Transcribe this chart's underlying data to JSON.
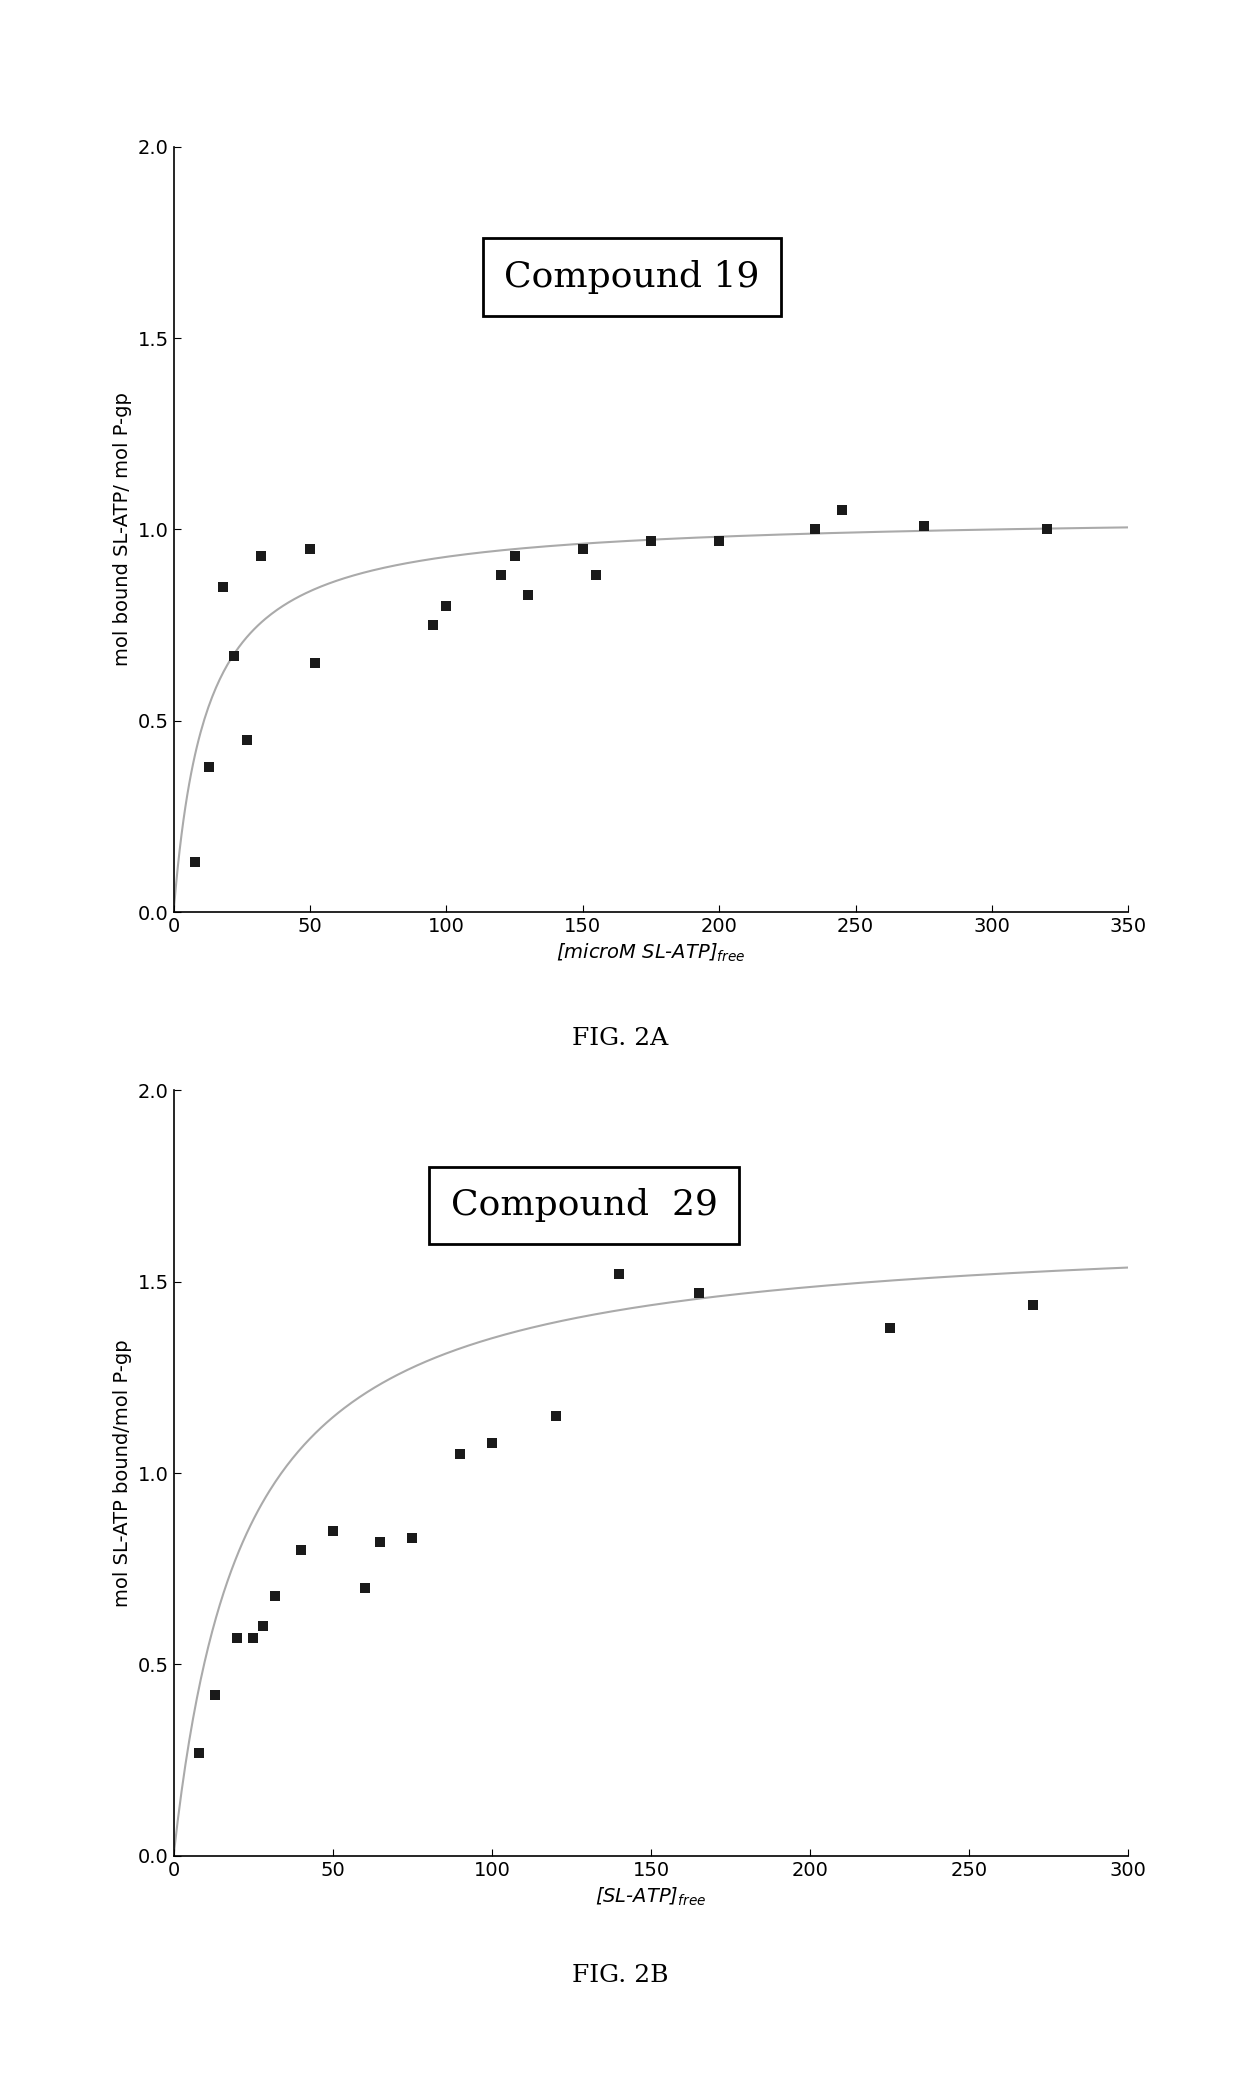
{
  "fig2a": {
    "title": "Compound 19",
    "scatter_x": [
      8,
      13,
      18,
      22,
      27,
      32,
      50,
      52,
      95,
      100,
      120,
      125,
      130,
      150,
      155,
      175,
      200,
      235,
      245,
      275,
      320
    ],
    "scatter_y": [
      0.13,
      0.38,
      0.85,
      0.67,
      0.45,
      0.93,
      0.95,
      0.65,
      0.75,
      0.8,
      0.88,
      0.93,
      0.83,
      0.95,
      0.88,
      0.97,
      0.97,
      1.0,
      1.05,
      1.01,
      1.0
    ],
    "xlabel": "[microM SL-ATP]",
    "xlabel_sub": "free",
    "ylabel": "mol bound SL-ATP/ mol P-gp",
    "xlim": [
      0,
      350
    ],
    "ylim": [
      0.0,
      2.0
    ],
    "xticks": [
      0,
      50,
      100,
      150,
      200,
      250,
      300,
      350
    ],
    "yticks": [
      0.0,
      0.5,
      1.0,
      1.5,
      2.0
    ],
    "fig_label": "FIG. 2A",
    "Bmax": 1.04,
    "Kd": 12.0
  },
  "fig2b": {
    "title": "Compound  29",
    "scatter_x": [
      8,
      13,
      20,
      25,
      28,
      32,
      40,
      50,
      60,
      65,
      75,
      90,
      100,
      120,
      140,
      165,
      225,
      270
    ],
    "scatter_y": [
      0.27,
      0.42,
      0.57,
      0.57,
      0.6,
      0.68,
      0.8,
      0.85,
      0.7,
      0.82,
      0.83,
      1.05,
      1.08,
      1.15,
      1.52,
      1.47,
      1.38,
      1.44
    ],
    "xlabel": "[SL-ATP]",
    "xlabel_sub": "free",
    "ylabel": "mol SL-ATP bound/mol P-gp",
    "xlim": [
      0,
      300
    ],
    "ylim": [
      0.0,
      2.0
    ],
    "xticks": [
      0,
      50,
      100,
      150,
      200,
      250,
      300
    ],
    "yticks": [
      0.0,
      0.5,
      1.0,
      1.5,
      2.0
    ],
    "fig_label": "FIG. 2B",
    "Bmax": 1.65,
    "Kd": 22.0
  },
  "background_color": "#ffffff",
  "scatter_color": "#1a1a1a",
  "curve_color": "#aaaaaa",
  "marker_size": 7,
  "title_fontsize": 26,
  "axis_fontsize": 14,
  "tick_fontsize": 14,
  "fig_label_fontsize": 18
}
